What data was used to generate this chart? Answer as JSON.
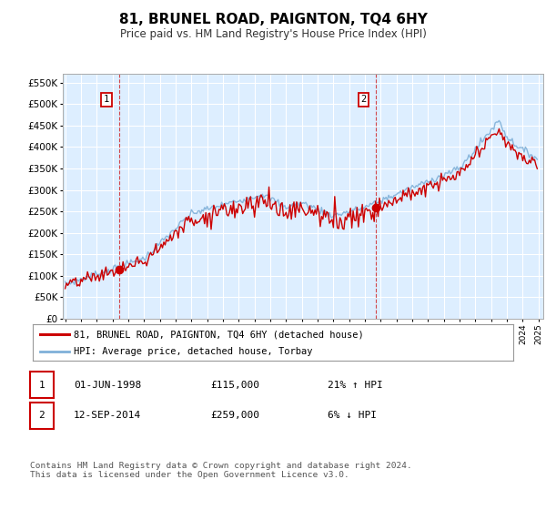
{
  "title": "81, BRUNEL ROAD, PAIGNTON, TQ4 6HY",
  "subtitle": "Price paid vs. HM Land Registry's House Price Index (HPI)",
  "plot_bg_color": "#ddeeff",
  "ylim": [
    0,
    550000
  ],
  "yticks": [
    0,
    50000,
    100000,
    150000,
    200000,
    250000,
    300000,
    350000,
    400000,
    450000,
    500000,
    550000
  ],
  "ytick_labels": [
    "£0",
    "£50K",
    "£100K",
    "£150K",
    "£200K",
    "£250K",
    "£300K",
    "£350K",
    "£400K",
    "£450K",
    "£500K",
    "£550K"
  ],
  "sale1_date_num": 1998.42,
  "sale1_price": 115000,
  "sale1_label": "1",
  "sale2_date_num": 2014.71,
  "sale2_price": 259000,
  "sale2_label": "2",
  "legend_line1": "81, BRUNEL ROAD, PAIGNTON, TQ4 6HY (detached house)",
  "legend_line2": "HPI: Average price, detached house, Torbay",
  "annot1_date": "01-JUN-1998",
  "annot1_price": "£115,000",
  "annot1_hpi": "21% ↑ HPI",
  "annot2_date": "12-SEP-2014",
  "annot2_price": "£259,000",
  "annot2_hpi": "6% ↓ HPI",
  "footer": "Contains HM Land Registry data © Crown copyright and database right 2024.\nThis data is licensed under the Open Government Licence v3.0.",
  "red_line_color": "#cc0000",
  "blue_line_color": "#7fb0d8",
  "xmin": 1995,
  "xmax": 2025
}
